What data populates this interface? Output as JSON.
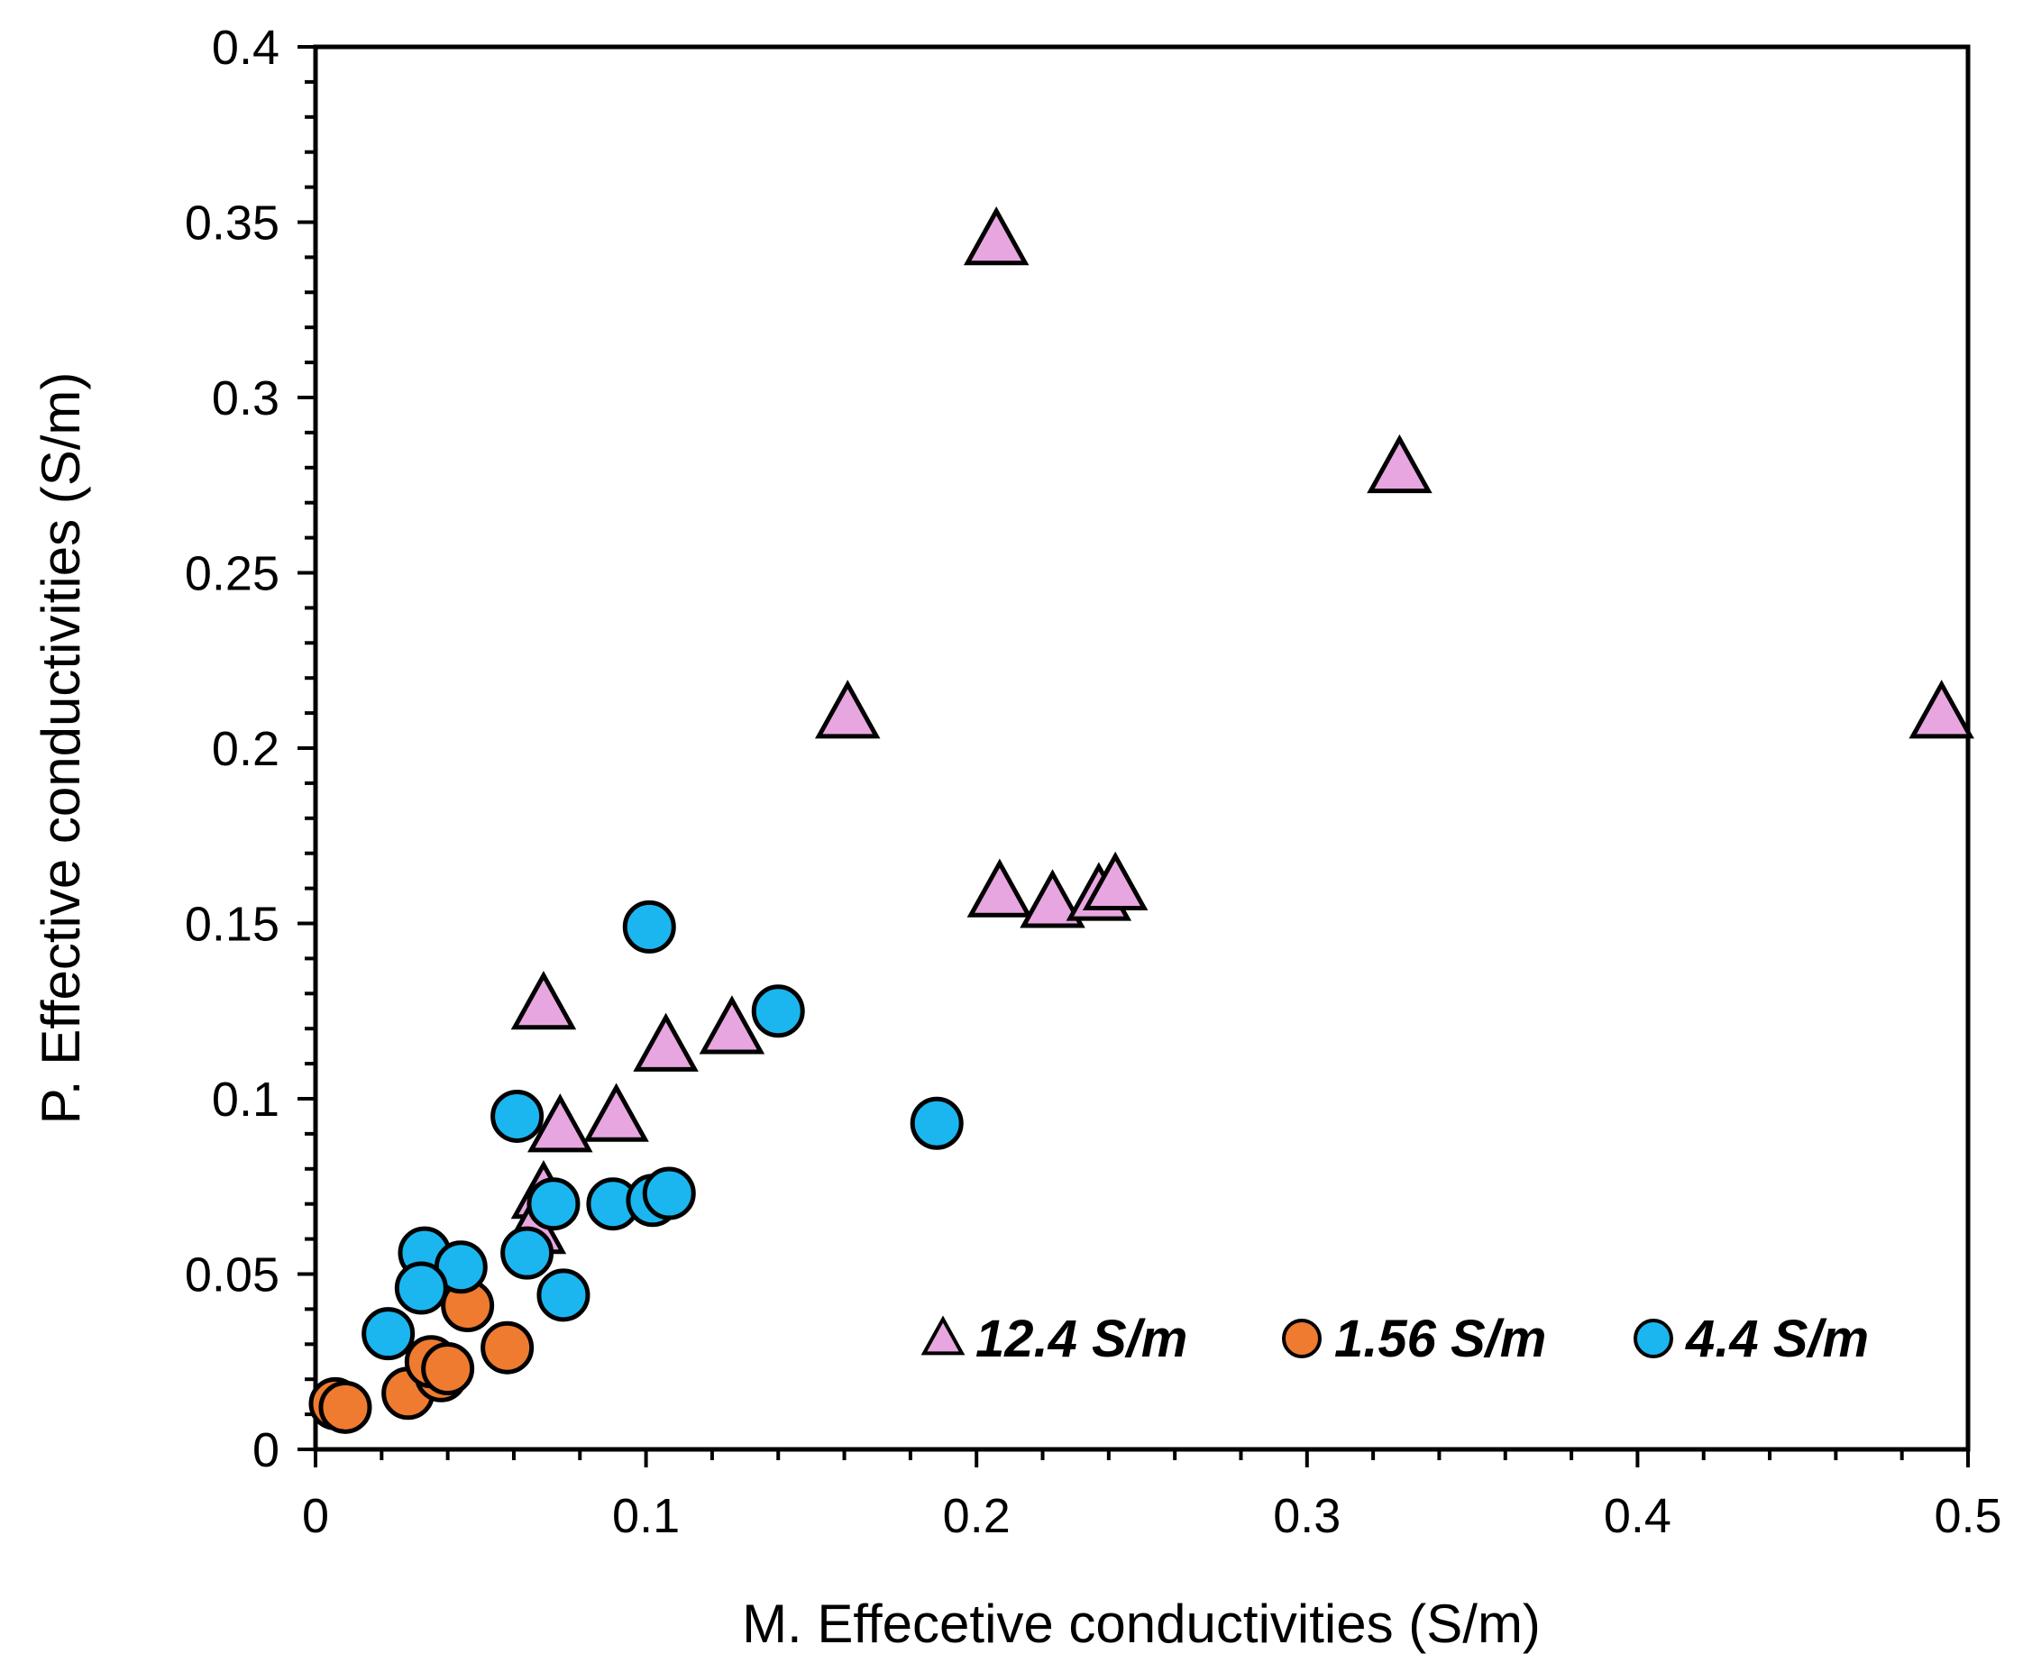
{
  "chart_data": {
    "type": "scatter",
    "title": "",
    "xlabel": "M. Effecetive conductivities (S/m)",
    "ylabel": "P. Effective conductivities (S/m)",
    "xlim": [
      0,
      0.5
    ],
    "ylim": [
      0,
      0.4
    ],
    "x_ticks": [
      "0",
      "0.1",
      "0.2",
      "0.3",
      "0.4",
      "0.5"
    ],
    "y_ticks": [
      "0",
      "0.05",
      "0.1",
      "0.15",
      "0.2",
      "0.25",
      "0.3",
      "0.35",
      "0.4"
    ],
    "legend_position": "bottom-right",
    "grid": false,
    "series": [
      {
        "name": "12.4 S/m",
        "marker": "triangle",
        "color": "#E8A6E0",
        "points": [
          [
            0.206,
            0.344
          ],
          [
            0.328,
            0.279
          ],
          [
            0.161,
            0.209
          ],
          [
            0.492,
            0.209
          ],
          [
            0.207,
            0.158
          ],
          [
            0.223,
            0.155
          ],
          [
            0.237,
            0.157
          ],
          [
            0.242,
            0.16
          ],
          [
            0.069,
            0.126
          ],
          [
            0.106,
            0.114
          ],
          [
            0.126,
            0.119
          ],
          [
            0.091,
            0.094
          ],
          [
            0.074,
            0.091
          ],
          [
            0.069,
            0.072
          ],
          [
            0.066,
            0.062
          ]
        ]
      },
      {
        "name": "1.56 S/m",
        "marker": "circle",
        "color": "#EE7B30",
        "points": [
          [
            0.006,
            0.013
          ],
          [
            0.009,
            0.012
          ],
          [
            0.028,
            0.016
          ],
          [
            0.038,
            0.021
          ],
          [
            0.035,
            0.025
          ],
          [
            0.04,
            0.023
          ],
          [
            0.046,
            0.041
          ],
          [
            0.058,
            0.029
          ]
        ]
      },
      {
        "name": "4.4 S/m",
        "marker": "circle",
        "color": "#1BB6F0",
        "points": [
          [
            0.101,
            0.149
          ],
          [
            0.14,
            0.125
          ],
          [
            0.061,
            0.095
          ],
          [
            0.188,
            0.093
          ],
          [
            0.09,
            0.07
          ],
          [
            0.102,
            0.071
          ],
          [
            0.107,
            0.073
          ],
          [
            0.072,
            0.07
          ],
          [
            0.064,
            0.056
          ],
          [
            0.033,
            0.056
          ],
          [
            0.044,
            0.052
          ],
          [
            0.032,
            0.046
          ],
          [
            0.075,
            0.044
          ],
          [
            0.022,
            0.033
          ]
        ]
      }
    ]
  }
}
